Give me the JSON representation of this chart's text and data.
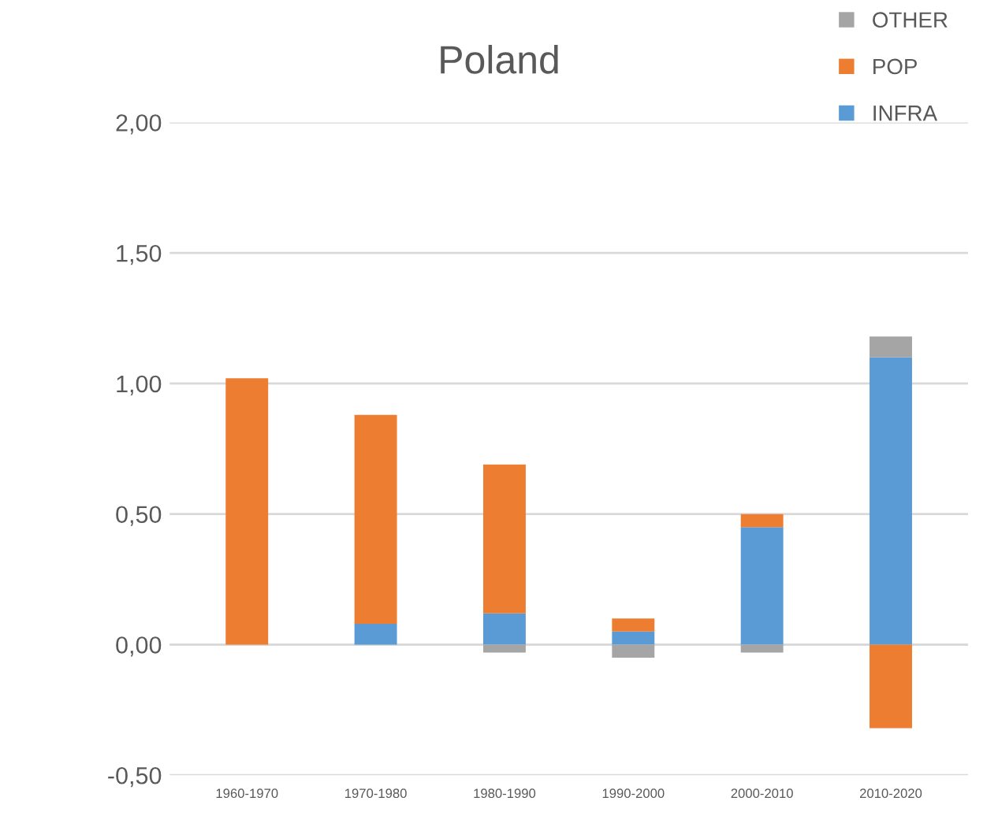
{
  "chart_data": {
    "type": "bar",
    "title": "Poland",
    "stacked": true,
    "categories": [
      "1960-1970",
      "1970-1980",
      "1980-1990",
      "1990-2000",
      "2000-2010",
      "2010-2020"
    ],
    "series": [
      {
        "name": "INFRA",
        "color": "#5b9bd5",
        "values": [
          0,
          0.08,
          0.12,
          0.05,
          0.45,
          1.1
        ]
      },
      {
        "name": "POP",
        "color": "#ed7d31",
        "values": [
          1.02,
          0.8,
          0.57,
          0.05,
          0.05,
          -0.32
        ]
      },
      {
        "name": "OTHER",
        "color": "#a5a5a5",
        "values": [
          0,
          0,
          -0.03,
          -0.05,
          -0.03,
          0.08
        ]
      }
    ],
    "ylim": [
      -0.5,
      2.0
    ],
    "yticks": [
      {
        "value": -0.5,
        "label": "-0,50"
      },
      {
        "value": 0,
        "label": "0,00"
      },
      {
        "value": 0.5,
        "label": "0,50"
      },
      {
        "value": 1.0,
        "label": "1,00"
      },
      {
        "value": 1.5,
        "label": "1,50"
      },
      {
        "value": 2.0,
        "label": "2,00"
      }
    ],
    "grid": "y",
    "legend": "top right"
  }
}
